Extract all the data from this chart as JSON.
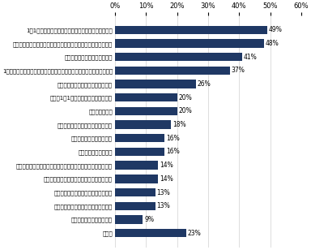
{
  "categories": [
    "1人1人の労働時間と業務量を記録し、細かく評価する",
    "社外とのやり取り方法の効率化（メール、テレビ会議の活用等）",
    "業務のアウトソーシングの実施",
    "1日の中で電話も声をかけられることもなく、社内集中タイムを設ける",
    "社内で仕事効率化手法を共有し合う",
    "従業員1人1人が社外研修を受けに行く",
    "休日出社の廃止",
    "業務フロー・業務システムを見直す",
    "フレックス制度を導入する",
    "会議の削減・時間管理",
    "コミュニケーションの効率化（メール、テレビ会議の活用等）",
    "オフィス環境（備品や環境など）を整備する",
    "結果より努力を評価する文化をなくす",
    "従業員の待遇を上げ、満足度を上げる",
    "業務分担の適正化・平準化",
    "その他"
  ],
  "values": [
    49,
    48,
    41,
    37,
    26,
    20,
    20,
    18,
    16,
    16,
    14,
    14,
    13,
    13,
    9,
    23
  ],
  "bar_color": "#1f3864",
  "value_color": "#000000",
  "xlim": [
    0,
    60
  ],
  "xticks": [
    0,
    10,
    20,
    30,
    40,
    50,
    60
  ],
  "xtick_labels": [
    "0%",
    "10%",
    "20%",
    "30%",
    "40%",
    "50%",
    "60%"
  ],
  "label_fontsize": 5.0,
  "value_fontsize": 5.5,
  "tick_fontsize": 6.0,
  "background_color": "#ffffff"
}
